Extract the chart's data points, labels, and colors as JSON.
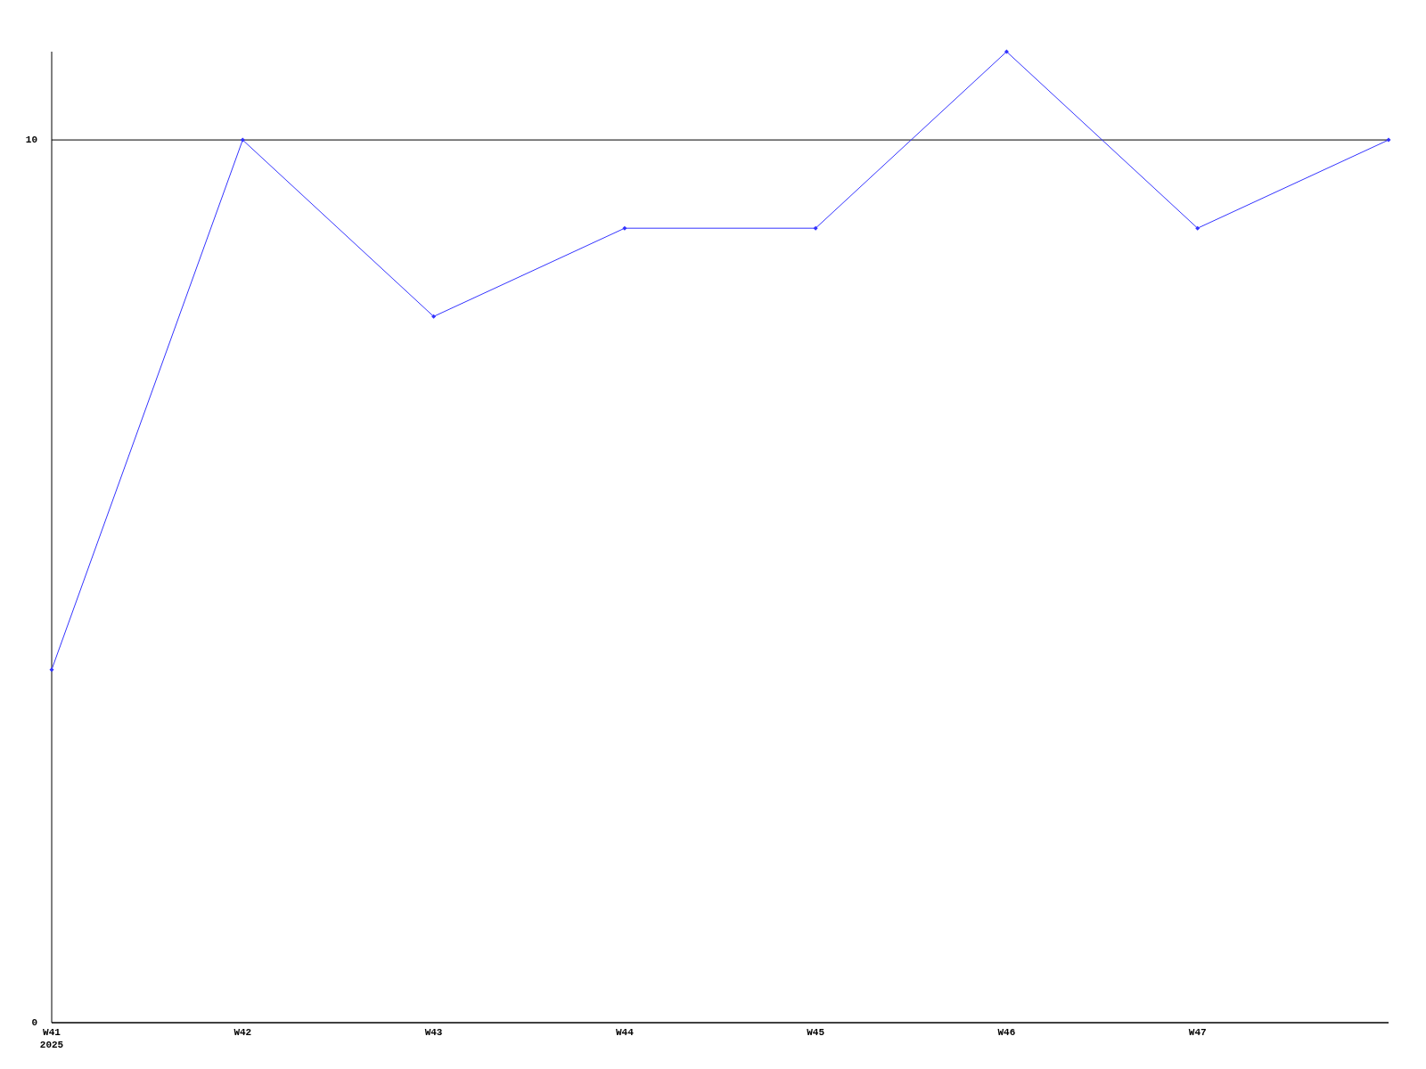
{
  "chart_data": {
    "type": "line",
    "categories": [
      "W41\n2025",
      "W42",
      "W43",
      "W44",
      "W45",
      "W46",
      "W47",
      null
    ],
    "series": [
      {
        "color": "#3333ff",
        "values": [
          4,
          10,
          8,
          9,
          9,
          11,
          9,
          10
        ]
      }
    ],
    "ylim": [
      0,
      11
    ],
    "yticks": [
      0,
      10
    ],
    "grid": "y",
    "marker": "diamond",
    "line_style": "solid"
  }
}
